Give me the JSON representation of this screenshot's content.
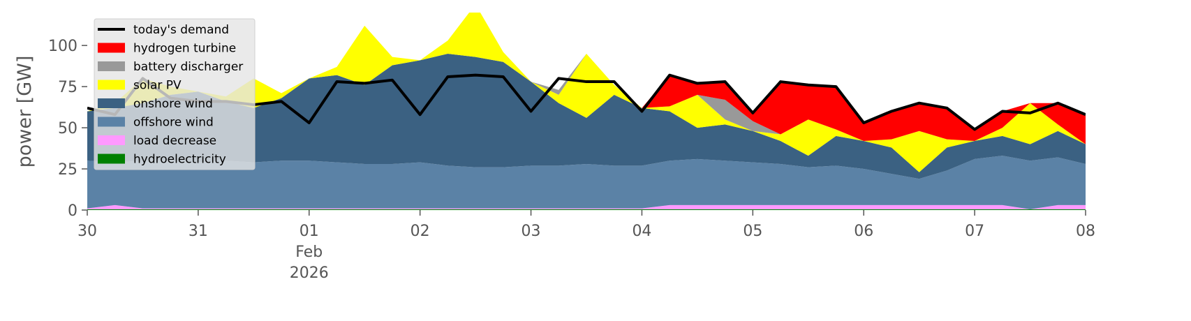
{
  "chart_data": {
    "type": "area",
    "stacked": true,
    "ylabel": "power [GW]",
    "x": [
      0,
      0.25,
      0.5,
      0.75,
      1,
      1.25,
      1.5,
      1.75,
      2,
      2.25,
      2.5,
      2.75,
      3,
      3.25,
      3.5,
      3.75,
      4,
      4.25,
      4.5,
      4.75,
      5,
      5.25,
      5.5,
      5.75,
      6,
      6.25,
      6.5,
      6.75,
      7,
      7.25,
      7.5,
      7.75,
      8,
      8.25,
      8.5,
      8.75,
      9
    ],
    "xlim": [
      0,
      9
    ],
    "xticks": [
      {
        "value": 0,
        "label": "30"
      },
      {
        "value": 1,
        "label": "31"
      },
      {
        "value": 2,
        "label": "01",
        "month": "Feb",
        "year": "2026"
      },
      {
        "value": 3,
        "label": "02"
      },
      {
        "value": 4,
        "label": "03"
      },
      {
        "value": 5,
        "label": "04"
      },
      {
        "value": 6,
        "label": "05"
      },
      {
        "value": 7,
        "label": "06"
      },
      {
        "value": 8,
        "label": "07"
      },
      {
        "value": 9,
        "label": "08"
      }
    ],
    "ylim": [
      0,
      120
    ],
    "yticks": [
      0,
      25,
      50,
      75,
      100
    ],
    "legend": "upper left",
    "line": {
      "name": "today's demand",
      "color": "#000000",
      "values": [
        62,
        58,
        80,
        68,
        66,
        66,
        64,
        66,
        53,
        78,
        77,
        79,
        58,
        81,
        82,
        81,
        60,
        80,
        78,
        78,
        60,
        82,
        77,
        78,
        59,
        78,
        76,
        75,
        53,
        60,
        65,
        62,
        49,
        60,
        59,
        65,
        58
      ]
    },
    "series": [
      {
        "name": "hydroelectricity",
        "color": "#008000",
        "values": [
          0.5,
          0.5,
          0.5,
          0.5,
          0.5,
          0.5,
          0.5,
          0.5,
          0.5,
          0.5,
          0.5,
          0.5,
          0.5,
          0.5,
          0.5,
          0.5,
          0.5,
          0.5,
          0.5,
          0.5,
          0.5,
          0.5,
          0.5,
          0.5,
          0.5,
          0.5,
          0.5,
          0.5,
          0.5,
          0.5,
          0.5,
          0.5,
          0.5,
          0.5,
          0.5,
          0.5,
          0.5
        ]
      },
      {
        "name": "load decrease",
        "color": "#ff99ff",
        "values": [
          0.5,
          2.5,
          0.5,
          0.5,
          0.5,
          0.5,
          0.5,
          0.5,
          0.5,
          0.5,
          0.5,
          0.5,
          0.5,
          0.5,
          0.5,
          0.5,
          0.5,
          0.5,
          0.5,
          0.5,
          0.5,
          2.5,
          2.5,
          2.5,
          2.5,
          2.5,
          2.5,
          2.5,
          2.5,
          2.5,
          2.5,
          2.5,
          2.5,
          2.5,
          0,
          2.5,
          2.5
        ]
      },
      {
        "name": "offshore wind",
        "color": "#5b82a6",
        "values": [
          29,
          26,
          29,
          29,
          28,
          29,
          28,
          29,
          29,
          28,
          27,
          27,
          28,
          26,
          25,
          25,
          26,
          26,
          27,
          26,
          26,
          27,
          28,
          27,
          26,
          25,
          23,
          24,
          22,
          19,
          16,
          21,
          28,
          30,
          29.5,
          29,
          25
        ]
      },
      {
        "name": "onshore wind",
        "color": "#3b6182",
        "values": [
          30,
          33,
          35,
          40,
          43,
          36,
          33,
          38,
          50,
          53,
          48,
          60,
          62,
          68,
          67,
          64,
          51,
          38,
          28,
          43,
          35,
          30,
          19,
          22,
          19,
          14,
          7,
          18,
          17,
          16,
          4,
          14,
          11,
          12,
          10,
          16,
          12
        ]
      },
      {
        "name": "solar PV",
        "color": "#ffff00",
        "values": [
          0,
          3,
          15,
          5,
          0,
          3,
          18,
          3,
          0,
          5,
          36,
          5,
          0,
          8,
          32,
          6,
          0,
          5,
          39,
          6,
          0,
          3,
          20,
          3,
          0,
          4,
          22,
          4,
          0,
          5,
          25,
          5,
          0,
          5,
          25,
          4,
          0
        ]
      },
      {
        "name": "battery discharger",
        "color": "#999999",
        "values": [
          0,
          0,
          0,
          0,
          0,
          0,
          0,
          0,
          0,
          0,
          0,
          0,
          0,
          0,
          0,
          0,
          0,
          3,
          0,
          0,
          0,
          0,
          0,
          12,
          6,
          0,
          0,
          0,
          0,
          0,
          0,
          0,
          0,
          0,
          0,
          0,
          0
        ]
      },
      {
        "name": "hydrogen turbine",
        "color": "#ff0000",
        "values": [
          0,
          0,
          0,
          0,
          0,
          0,
          0,
          0,
          0,
          0,
          0,
          0,
          0,
          0,
          0,
          0,
          0,
          0,
          0,
          0,
          0,
          19,
          7,
          11,
          5,
          32,
          21,
          26,
          11,
          17,
          17,
          19,
          7,
          10,
          0,
          13,
          18
        ]
      }
    ]
  }
}
